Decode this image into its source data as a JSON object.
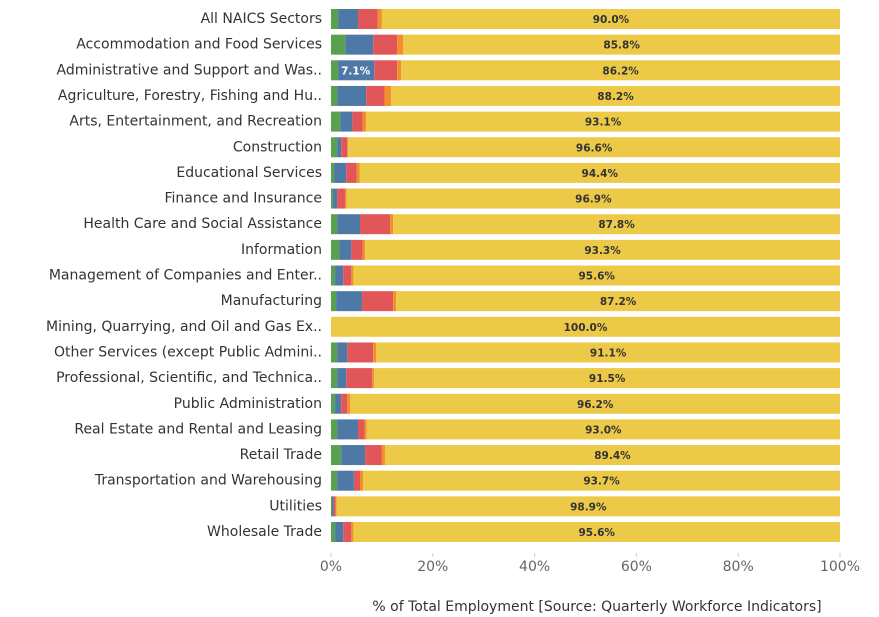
{
  "chart_data": {
    "type": "stacked_bar_horizontal",
    "xlabel": "% of Total Employment [Source: Quarterly Workforce Indicators]",
    "categories": [
      "All NAICS Sectors",
      "Accommodation and Food Services",
      "Administrative and Support and Was..",
      "Agriculture, Forestry, Fishing and Hu..",
      "Arts, Entertainment, and Recreation",
      "Construction",
      "Educational Services",
      "Finance and Insurance",
      "Health Care and Social Assistance",
      "Information",
      "Management of Companies and Enter..",
      "Manufacturing",
      "Mining, Quarrying, and Oil and Gas Ex..",
      "Other Services (except Public Admini..",
      "Professional, Scientific, and Technica..",
      "Public Administration",
      "Real Estate and Rental and Leasing",
      "Retail Trade",
      "Transportation and Warehousing",
      "Utilities",
      "Wholesale Trade"
    ],
    "series": [
      {
        "color": "#59a14f",
        "values": [
          1.4,
          2.8,
          1.4,
          1.2,
          1.8,
          1.2,
          0.6,
          0.4,
          1.2,
          1.6,
          0.8,
          1.0,
          0,
          1.2,
          1.2,
          0.8,
          1.2,
          2.0,
          1.2,
          0.2,
          0.8
        ]
      },
      {
        "color": "#4e79a7",
        "values": [
          3.9,
          5.5,
          7.1,
          5.7,
          2.4,
          0.8,
          2.4,
          0.8,
          4.5,
          2.4,
          1.6,
          5.1,
          0,
          2.0,
          1.8,
          1.2,
          4.1,
          4.7,
          3.3,
          0.3,
          1.6
        ],
        "value_labels": [
          null,
          null,
          "7.1%",
          null,
          null,
          null,
          null,
          null,
          null,
          null,
          null,
          null,
          null,
          null,
          null,
          null,
          null,
          null,
          null,
          null,
          null
        ]
      },
      {
        "color": "#e15759",
        "values": [
          3.9,
          4.7,
          4.5,
          3.6,
          2.0,
          1.2,
          2.0,
          1.6,
          5.9,
          2.2,
          1.6,
          6.1,
          0,
          5.1,
          5.1,
          1.2,
          1.3,
          3.3,
          1.2,
          0.4,
          1.6
        ]
      },
      {
        "color": "#f28e2b",
        "values": [
          0.8,
          1.2,
          0.8,
          1.3,
          0.7,
          0.2,
          0.6,
          0.3,
          0.6,
          0.5,
          0.4,
          0.6,
          0,
          0.6,
          0.4,
          0.6,
          0.4,
          0.6,
          0.6,
          0.2,
          0.4
        ]
      },
      {
        "color": "#edc948",
        "values": [
          90.0,
          85.8,
          86.2,
          88.2,
          93.1,
          96.6,
          94.4,
          96.9,
          87.8,
          93.3,
          95.6,
          87.2,
          100.0,
          91.1,
          91.5,
          96.2,
          93.0,
          89.4,
          93.7,
          98.9,
          95.6
        ],
        "value_labels": [
          "90.0%",
          "85.8%",
          "86.2%",
          "88.2%",
          "93.1%",
          "96.6%",
          "94.4%",
          "96.9%",
          "87.8%",
          "93.3%",
          "95.6%",
          "87.2%",
          "100.0%",
          "91.1%",
          "91.5%",
          "96.2%",
          "93.0%",
          "89.4%",
          "93.7%",
          "98.9%",
          "95.6%"
        ]
      }
    ],
    "xlim": [
      0,
      100
    ],
    "xticks": [
      {
        "value": 0,
        "label": "0%"
      },
      {
        "value": 20,
        "label": "20%"
      },
      {
        "value": 40,
        "label": "40%"
      },
      {
        "value": 60,
        "label": "60%"
      },
      {
        "value": 80,
        "label": "80%"
      },
      {
        "value": 100,
        "label": "100%"
      }
    ]
  }
}
